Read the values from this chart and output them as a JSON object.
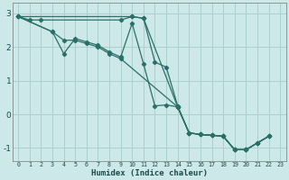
{
  "xlabel": "Humidex (Indice chaleur)",
  "background_color": "#cce8e8",
  "grid_color": "#aad0d0",
  "line_color": "#2a7068",
  "xlim": [
    -0.5,
    23.5
  ],
  "ylim": [
    -1.4,
    3.3
  ],
  "yticks": [
    -1,
    0,
    1,
    2,
    3
  ],
  "xticks": [
    0,
    1,
    2,
    3,
    4,
    5,
    6,
    7,
    8,
    9,
    10,
    11,
    12,
    13,
    14,
    15,
    16,
    17,
    18,
    19,
    20,
    21,
    22,
    23
  ],
  "lines": [
    {
      "x": [
        0,
        1,
        2,
        9,
        10,
        11,
        12,
        13,
        14,
        15,
        16,
        17,
        18,
        19,
        20,
        21,
        22
      ],
      "y": [
        2.9,
        2.8,
        2.8,
        2.8,
        2.9,
        2.85,
        1.55,
        1.4,
        0.25,
        -0.55,
        -0.6,
        -0.62,
        -0.65,
        -1.05,
        -1.05,
        -0.85,
        -0.65
      ]
    },
    {
      "x": [
        0,
        3,
        4,
        5,
        6,
        7,
        8,
        9,
        10,
        11,
        12,
        13,
        14,
        15,
        16,
        17,
        18,
        19,
        20,
        21,
        22
      ],
      "y": [
        2.9,
        2.45,
        1.8,
        2.25,
        2.15,
        2.05,
        1.85,
        1.7,
        2.7,
        1.5,
        0.25,
        0.28,
        0.22,
        -0.55,
        -0.6,
        -0.62,
        -0.65,
        -1.05,
        -1.05,
        -0.85,
        -0.65
      ]
    },
    {
      "x": [
        0,
        3,
        4,
        5,
        6,
        7,
        8,
        9,
        14,
        15,
        16,
        17,
        18,
        19,
        20,
        21,
        22
      ],
      "y": [
        2.9,
        2.45,
        2.2,
        2.2,
        2.1,
        2.0,
        1.8,
        1.65,
        0.22,
        -0.55,
        -0.6,
        -0.62,
        -0.65,
        -1.05,
        -1.05,
        -0.85,
        -0.65
      ]
    },
    {
      "x": [
        0,
        10,
        11,
        14,
        15,
        16,
        17,
        18,
        19,
        20,
        21,
        22
      ],
      "y": [
        2.9,
        2.9,
        2.85,
        0.22,
        -0.55,
        -0.6,
        -0.62,
        -0.65,
        -1.05,
        -1.05,
        -0.85,
        -0.65
      ]
    }
  ]
}
